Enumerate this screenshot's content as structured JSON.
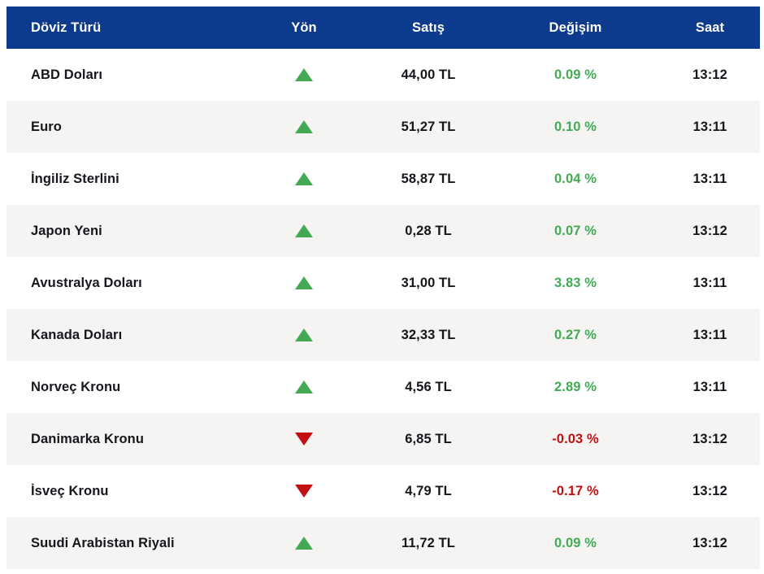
{
  "colors": {
    "header_bg": "#0c3a8d",
    "header_text": "#ffffff",
    "row_bg": "#ffffff",
    "row_alt_bg": "#f5f4f3",
    "text": "#16161d",
    "up": "#43a957",
    "down": "#c40f12",
    "page_bg": "#ffffff"
  },
  "icons": {
    "up": "triangle-up-icon",
    "down": "triangle-down-icon"
  },
  "table": {
    "columns": [
      {
        "key": "currency",
        "label": "Döviz Türü"
      },
      {
        "key": "direction",
        "label": "Yön"
      },
      {
        "key": "price",
        "label": "Satış"
      },
      {
        "key": "change",
        "label": "Değişim"
      },
      {
        "key": "time",
        "label": "Saat"
      }
    ],
    "rows": [
      {
        "currency": "ABD Doları",
        "direction": "up",
        "price": "44,00 TL",
        "change": "0.09 %",
        "time": "13:12"
      },
      {
        "currency": "Euro",
        "direction": "up",
        "price": "51,27 TL",
        "change": "0.10 %",
        "time": "13:11"
      },
      {
        "currency": "İngiliz Sterlini",
        "direction": "up",
        "price": "58,87 TL",
        "change": "0.04 %",
        "time": "13:11"
      },
      {
        "currency": "Japon Yeni",
        "direction": "up",
        "price": "0,28 TL",
        "change": "0.07 %",
        "time": "13:12"
      },
      {
        "currency": "Avustralya Doları",
        "direction": "up",
        "price": "31,00 TL",
        "change": "3.83 %",
        "time": "13:11"
      },
      {
        "currency": "Kanada Doları",
        "direction": "up",
        "price": "32,33 TL",
        "change": "0.27 %",
        "time": "13:11"
      },
      {
        "currency": "Norveç Kronu",
        "direction": "up",
        "price": "4,56 TL",
        "change": "2.89 %",
        "time": "13:11"
      },
      {
        "currency": "Danimarka Kronu",
        "direction": "down",
        "price": "6,85 TL",
        "change": "-0.03 %",
        "time": "13:12"
      },
      {
        "currency": "İsveç Kronu",
        "direction": "down",
        "price": "4,79 TL",
        "change": "-0.17 %",
        "time": "13:12"
      },
      {
        "currency": "Suudi Arabistan Riyali",
        "direction": "up",
        "price": "11,72 TL",
        "change": "0.09 %",
        "time": "13:12"
      }
    ]
  }
}
